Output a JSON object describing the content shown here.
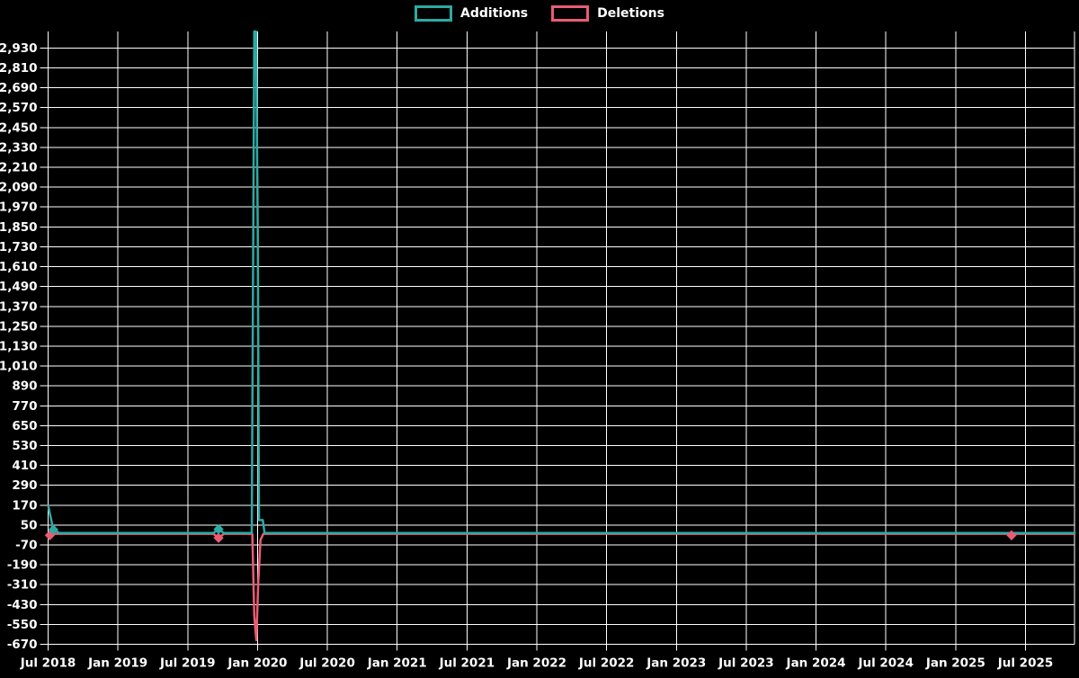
{
  "chart_data": {
    "type": "line",
    "title": "",
    "legend_position": "top-center",
    "background": "#000000",
    "grid": true,
    "grid_color": "#ffffff",
    "text_color": "#ffffff",
    "x_axis": {
      "tick_labels": [
        "Jul 2018",
        "Jan 2019",
        "Jul 2019",
        "Jan 2020",
        "Jul 2020",
        "Jan 2021",
        "Jul 2021",
        "Jan 2022",
        "Jul 2022",
        "Jan 2023",
        "Jul 2023",
        "Jan 2024",
        "Jul 2024",
        "Jan 2025",
        "Jul 2025"
      ],
      "unit": "months_since_first_tick",
      "months_per_tick": 6,
      "range_months": [
        0,
        88
      ]
    },
    "y_axis": {
      "tick_labels": [
        "2,930",
        "2,810",
        "2,690",
        "2,570",
        "2,450",
        "2,330",
        "2,210",
        "2,090",
        "1,970",
        "1,850",
        "1,730",
        "1,610",
        "1,490",
        "1,370",
        "1,250",
        "1,130",
        "1,010",
        "890",
        "770",
        "650",
        "530",
        "410",
        "290",
        "170",
        "50",
        "-70",
        "-190",
        "-310",
        "-430",
        "-550",
        "-670"
      ],
      "tick_step": 120,
      "min": -670,
      "max": 3030
    },
    "series": [
      {
        "name": "Additions",
        "color": "#2fa9a4",
        "marker": "diamond",
        "points": [
          [
            0,
            170
          ],
          [
            0.45,
            22
          ],
          [
            0.95,
            2
          ],
          [
            14.2,
            2
          ],
          [
            14.65,
            25
          ],
          [
            15.1,
            2
          ],
          [
            17.5,
            2
          ],
          [
            17.72,
            3030
          ],
          [
            17.87,
            3030
          ],
          [
            18.02,
            1810
          ],
          [
            18.12,
            80
          ],
          [
            18.45,
            80
          ],
          [
            18.6,
            2
          ],
          [
            88.3,
            2
          ]
        ],
        "marker_points": [
          [
            0.45,
            22
          ],
          [
            14.65,
            25
          ]
        ]
      },
      {
        "name": "Deletions",
        "color": "#ea5c74",
        "marker": "diamond",
        "points": [
          [
            0.15,
            -12
          ],
          [
            0.6,
            -3
          ],
          [
            14.2,
            -3
          ],
          [
            14.65,
            -28
          ],
          [
            15.1,
            -3
          ],
          [
            17.55,
            -3
          ],
          [
            17.72,
            -500
          ],
          [
            17.9,
            -645
          ],
          [
            18.05,
            -310
          ],
          [
            18.25,
            -40
          ],
          [
            18.5,
            -3
          ],
          [
            82.5,
            -3
          ],
          [
            82.8,
            -12
          ],
          [
            83.1,
            -3
          ],
          [
            88.3,
            -3
          ]
        ],
        "marker_points": [
          [
            0.15,
            -12
          ],
          [
            14.65,
            -28
          ],
          [
            82.8,
            -12
          ]
        ]
      }
    ]
  }
}
